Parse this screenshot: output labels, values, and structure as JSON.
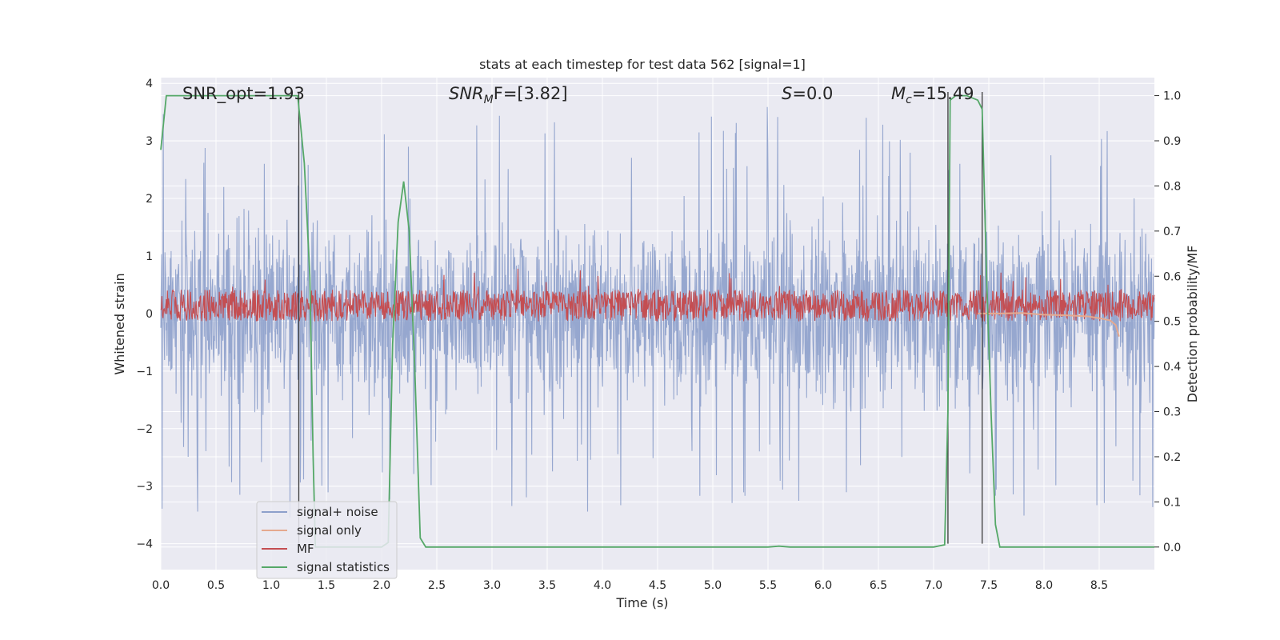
{
  "chart_data": {
    "type": "line",
    "title": "stats at each timestep for test data 562 [signal=1]",
    "xlabel": "Time (s)",
    "ylabel": "Whitened strain",
    "y2label": "Detection probability/MF",
    "xlim": [
      0,
      9.0
    ],
    "ylim": [
      -4.45,
      4.1
    ],
    "y2lim": [
      -0.05,
      1.04
    ],
    "grid": true,
    "background": "#eaeaf2",
    "legend_position": "lower-left",
    "x_ticks": [
      "0.0",
      "0.5",
      "1.0",
      "1.5",
      "2.0",
      "2.5",
      "3.0",
      "3.5",
      "4.0",
      "4.5",
      "5.0",
      "5.5",
      "6.0",
      "6.5",
      "7.0",
      "7.5",
      "8.0",
      "8.5"
    ],
    "x_tick_values": [
      0.0,
      0.5,
      1.0,
      1.5,
      2.0,
      2.5,
      3.0,
      3.5,
      4.0,
      4.5,
      5.0,
      5.5,
      6.0,
      6.5,
      7.0,
      7.5,
      8.0,
      8.5
    ],
    "y_ticks": [
      "4",
      "3",
      "2",
      "1",
      "0",
      "−1",
      "−2",
      "−3",
      "−4"
    ],
    "y_tick_values": [
      4,
      3,
      2,
      1,
      0,
      -1,
      -2,
      -3,
      -4
    ],
    "y2_ticks": [
      "1.0",
      "0.9",
      "0.8",
      "0.7",
      "0.6",
      "0.5",
      "0.4",
      "0.3",
      "0.2",
      "0.1",
      "0.0"
    ],
    "y2_tick_values": [
      1.0,
      0.9,
      0.8,
      0.7,
      0.6,
      0.5,
      0.4,
      0.3,
      0.2,
      0.1,
      0.0
    ],
    "annotations": {
      "snr_opt": "SNR_opt=1.93",
      "snr_mf_sym": "SNR",
      "snr_mf_sub": "M",
      "snr_mf_rest": "F=[3.82]",
      "s_sym": "S",
      "s_rest": "=0.0",
      "mc_sym": "M",
      "mc_sub": "c",
      "mc_rest": "=15.49"
    },
    "series": [
      {
        "name": "signal+ noise",
        "color": "#8da0cb",
        "axis": "left",
        "style": "dense-noise",
        "x_range": [
          0,
          9.0
        ],
        "envelope_typical": [
          -2.0,
          2.0
        ],
        "peaks_max": 3.7,
        "peaks_min": -4.0
      },
      {
        "name": "signal only",
        "color": "#e5a98f",
        "axis": "left",
        "x": [
          7.4,
          7.6,
          7.8,
          8.0,
          8.2,
          8.4,
          8.5,
          8.6,
          8.65,
          8.68
        ],
        "y": [
          0.0,
          0.0,
          0.01,
          -0.02,
          -0.03,
          -0.05,
          -0.08,
          -0.12,
          -0.2,
          -0.4
        ]
      },
      {
        "name": "MF",
        "color": "#c44e52",
        "axis": "right",
        "style": "dense-noise",
        "x_range": [
          0,
          9.0
        ],
        "base": 0.5,
        "typical_max": 0.57,
        "peak_max": 0.62
      },
      {
        "name": "signal statistics",
        "color": "#55a868",
        "axis": "right",
        "x": [
          0.0,
          0.05,
          0.5,
          1.0,
          1.24,
          1.26,
          1.3,
          1.35,
          1.38,
          1.4,
          1.5,
          1.8,
          2.0,
          2.06,
          2.1,
          2.15,
          2.2,
          2.25,
          2.3,
          2.35,
          2.4,
          3.0,
          4.0,
          5.0,
          5.5,
          5.6,
          5.7,
          6.0,
          7.0,
          7.1,
          7.13,
          7.15,
          7.2,
          7.3,
          7.4,
          7.44,
          7.48,
          7.52,
          7.56,
          7.6,
          8.0,
          9.0
        ],
        "y": [
          0.88,
          1.0,
          1.0,
          1.0,
          1.0,
          0.95,
          0.85,
          0.6,
          0.2,
          0.0,
          0.0,
          0.0,
          0.0,
          0.01,
          0.45,
          0.72,
          0.81,
          0.7,
          0.4,
          0.02,
          0.0,
          0.0,
          0.0,
          0.0,
          0.0,
          0.002,
          0.0,
          0.0,
          0.0,
          0.005,
          0.3,
          0.99,
          1.0,
          1.0,
          0.99,
          0.97,
          0.6,
          0.3,
          0.05,
          0.0,
          0.0,
          0.0
        ]
      }
    ],
    "vertical_lines": [
      1.25,
      7.13,
      7.44
    ]
  }
}
